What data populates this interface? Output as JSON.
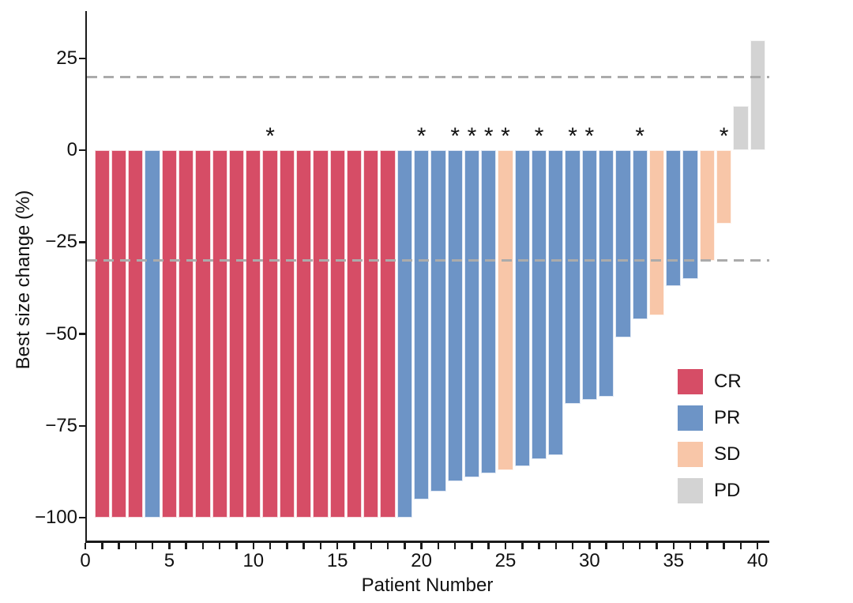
{
  "figure": {
    "background": "#ffffff",
    "y_axis": {
      "title": "Best size change (%)",
      "tick_values": [
        25,
        0,
        -25,
        -50,
        -75,
        -100
      ],
      "tick_labels": [
        "25",
        "0",
        "−25",
        "−50",
        "−75",
        "−100"
      ]
    },
    "x_axis": {
      "title": "Patient Number",
      "labeled_ticks": [
        0,
        5,
        10,
        15,
        20,
        25,
        30,
        35,
        40
      ],
      "minor_tick_step": 1,
      "first_tick": 0,
      "last_tick": 40
    },
    "legend": {
      "items": [
        {
          "label": "CR",
          "color": "#d64d66"
        },
        {
          "label": "PR",
          "color": "#6d94c6"
        },
        {
          "label": "SD",
          "color": "#f8c6a8"
        },
        {
          "label": "PD",
          "color": "#d3d3d3"
        }
      ]
    }
  },
  "chart_data": {
    "type": "bar",
    "title": "",
    "xlabel": "Patient Number",
    "ylabel": "Best size change (%)",
    "xlim": [
      -0.6,
      41
    ],
    "ylim": [
      -106,
      37
    ],
    "yticks": [
      25,
      0,
      -25,
      -50,
      -75,
      -100
    ],
    "xticks_labeled": [
      0,
      5,
      10,
      15,
      20,
      25,
      30,
      35,
      40
    ],
    "grid": false,
    "legend_position": "inside-right",
    "reference_lines": {
      "values": [
        20,
        -30
      ],
      "style": "dashed",
      "color": "#ababab"
    },
    "annotation_symbol": "*",
    "response_categories": [
      "CR",
      "PR",
      "SD",
      "PD"
    ],
    "colors": {
      "CR": "#d64d66",
      "PR": "#6d94c6",
      "SD": "#f8c6a8",
      "PD": "#d3d3d3"
    },
    "patients": [
      {
        "patient": 1,
        "response": "CR",
        "value": -100,
        "asterisk": false
      },
      {
        "patient": 2,
        "response": "CR",
        "value": -100,
        "asterisk": false
      },
      {
        "patient": 3,
        "response": "CR",
        "value": -100,
        "asterisk": false
      },
      {
        "patient": 4,
        "response": "PR",
        "value": -100,
        "asterisk": false
      },
      {
        "patient": 5,
        "response": "CR",
        "value": -100,
        "asterisk": false
      },
      {
        "patient": 6,
        "response": "CR",
        "value": -100,
        "asterisk": false
      },
      {
        "patient": 7,
        "response": "CR",
        "value": -100,
        "asterisk": false
      },
      {
        "patient": 8,
        "response": "CR",
        "value": -100,
        "asterisk": false
      },
      {
        "patient": 9,
        "response": "CR",
        "value": -100,
        "asterisk": false
      },
      {
        "patient": 10,
        "response": "CR",
        "value": -100,
        "asterisk": false
      },
      {
        "patient": 11,
        "response": "CR",
        "value": -100,
        "asterisk": true
      },
      {
        "patient": 12,
        "response": "CR",
        "value": -100,
        "asterisk": false
      },
      {
        "patient": 13,
        "response": "CR",
        "value": -100,
        "asterisk": false
      },
      {
        "patient": 14,
        "response": "CR",
        "value": -100,
        "asterisk": false
      },
      {
        "patient": 15,
        "response": "CR",
        "value": -100,
        "asterisk": false
      },
      {
        "patient": 16,
        "response": "CR",
        "value": -100,
        "asterisk": false
      },
      {
        "patient": 17,
        "response": "CR",
        "value": -100,
        "asterisk": false
      },
      {
        "patient": 18,
        "response": "CR",
        "value": -100,
        "asterisk": false
      },
      {
        "patient": 19,
        "response": "PR",
        "value": -100,
        "asterisk": false
      },
      {
        "patient": 20,
        "response": "PR",
        "value": -95,
        "asterisk": true
      },
      {
        "patient": 21,
        "response": "PR",
        "value": -93,
        "asterisk": false
      },
      {
        "patient": 22,
        "response": "PR",
        "value": -90,
        "asterisk": true
      },
      {
        "patient": 23,
        "response": "PR",
        "value": -89,
        "asterisk": true
      },
      {
        "patient": 24,
        "response": "PR",
        "value": -88,
        "asterisk": true
      },
      {
        "patient": 25,
        "response": "SD",
        "value": -87,
        "asterisk": true
      },
      {
        "patient": 26,
        "response": "PR",
        "value": -86,
        "asterisk": false
      },
      {
        "patient": 27,
        "response": "PR",
        "value": -84,
        "asterisk": true
      },
      {
        "patient": 28,
        "response": "PR",
        "value": -83,
        "asterisk": false
      },
      {
        "patient": 29,
        "response": "PR",
        "value": -69,
        "asterisk": true
      },
      {
        "patient": 30,
        "response": "PR",
        "value": -68,
        "asterisk": true
      },
      {
        "patient": 31,
        "response": "PR",
        "value": -67,
        "asterisk": false
      },
      {
        "patient": 32,
        "response": "PR",
        "value": -51,
        "asterisk": false
      },
      {
        "patient": 33,
        "response": "PR",
        "value": -46,
        "asterisk": true
      },
      {
        "patient": 34,
        "response": "SD",
        "value": -45,
        "asterisk": false
      },
      {
        "patient": 35,
        "response": "PR",
        "value": -37,
        "asterisk": false
      },
      {
        "patient": 36,
        "response": "PR",
        "value": -35,
        "asterisk": false
      },
      {
        "patient": 37,
        "response": "SD",
        "value": -30,
        "asterisk": false
      },
      {
        "patient": 38,
        "response": "SD",
        "value": -20,
        "asterisk": true
      },
      {
        "patient": 39,
        "response": "PD",
        "value": 12,
        "asterisk": false
      },
      {
        "patient": 40,
        "response": "PD",
        "value": 30,
        "asterisk": false
      }
    ]
  }
}
